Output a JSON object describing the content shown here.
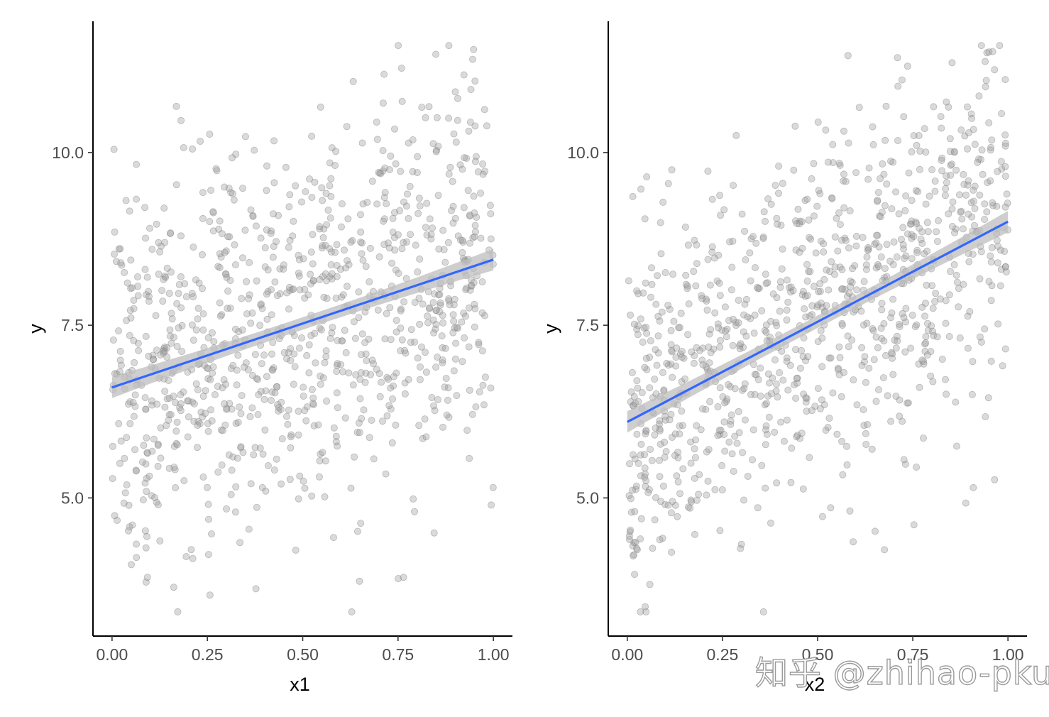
{
  "watermark": "知乎 @zhihao-pku",
  "colors": {
    "points": "#9e9e9e",
    "point_stroke": "#7a7a7a",
    "fit_line": "#3366ff",
    "ribbon": "#bdbdbd",
    "axis": "#000000"
  },
  "chart_data": [
    {
      "type": "scatter",
      "xlabel": "x1",
      "ylabel": "y",
      "xlim": [
        -0.05,
        1.05
      ],
      "ylim": [
        3.0,
        11.9
      ],
      "xticks": [
        "0.00",
        "0.25",
        "0.50",
        "0.75",
        "1.00"
      ],
      "yticks": [
        "5.0",
        "7.5",
        "10.0"
      ],
      "point_count": 1000,
      "fit": {
        "method": "lm",
        "intercept": 6.6,
        "slope": 1.85,
        "se_band": true
      },
      "noise_sd": 1.4,
      "seed": 11
    },
    {
      "type": "scatter",
      "xlabel": "x2",
      "ylabel": "y",
      "xlim": [
        -0.05,
        1.05
      ],
      "ylim": [
        3.0,
        11.9
      ],
      "xticks": [
        "0.00",
        "0.25",
        "0.50",
        "0.75",
        "1.00"
      ],
      "yticks": [
        "5.0",
        "7.5",
        "10.0"
      ],
      "point_count": 1000,
      "fit": {
        "method": "lm",
        "intercept": 6.1,
        "slope": 2.9,
        "se_band": true
      },
      "noise_sd": 1.25,
      "seed": 23
    }
  ]
}
